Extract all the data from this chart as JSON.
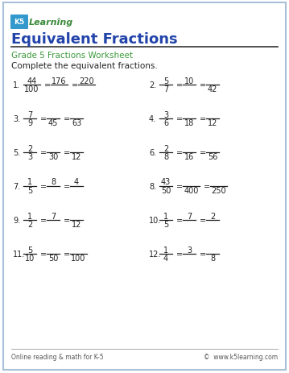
{
  "title": "Equivalent Fractions",
  "subtitle": "Grade 5 Fractions Worksheet",
  "instruction": "Complete the equivalent fractions.",
  "bg_color": "#ffffff",
  "border_color": "#a8c0d8",
  "title_color": "#2244aa",
  "subtitle_color": "#3a9a3a",
  "text_color": "#222222",
  "footer_left": "Online reading & math for K-5",
  "footer_right": "©  www.k5learning.com",
  "problems": [
    {
      "num": "1.",
      "fractions": [
        {
          "num": "44",
          "den": "100",
          "blank_num": false,
          "blank_den": false
        },
        {
          "num": "176",
          "den": "",
          "blank_num": false,
          "blank_den": true
        },
        {
          "num": "220",
          "den": "",
          "blank_num": false,
          "blank_den": true
        }
      ]
    },
    {
      "num": "2.",
      "fractions": [
        {
          "num": "5",
          "den": "7",
          "blank_num": false,
          "blank_den": false
        },
        {
          "num": "10",
          "den": "",
          "blank_num": false,
          "blank_den": true
        },
        {
          "num": "",
          "den": "42",
          "blank_num": true,
          "blank_den": false
        }
      ]
    },
    {
      "num": "3.",
      "fractions": [
        {
          "num": "7",
          "den": "9",
          "blank_num": false,
          "blank_den": false
        },
        {
          "num": "",
          "den": "45",
          "blank_num": true,
          "blank_den": false
        },
        {
          "num": "",
          "den": "63",
          "blank_num": true,
          "blank_den": false
        }
      ]
    },
    {
      "num": "4.",
      "fractions": [
        {
          "num": "3",
          "den": "6",
          "blank_num": false,
          "blank_den": false
        },
        {
          "num": "",
          "den": "18",
          "blank_num": true,
          "blank_den": false
        },
        {
          "num": "",
          "den": "12",
          "blank_num": true,
          "blank_den": false
        }
      ]
    },
    {
      "num": "5.",
      "fractions": [
        {
          "num": "2",
          "den": "3",
          "blank_num": false,
          "blank_den": false
        },
        {
          "num": "",
          "den": "30",
          "blank_num": true,
          "blank_den": false
        },
        {
          "num": "",
          "den": "12",
          "blank_num": true,
          "blank_den": false
        }
      ]
    },
    {
      "num": "6.",
      "fractions": [
        {
          "num": "2",
          "den": "8",
          "blank_num": false,
          "blank_den": false
        },
        {
          "num": "",
          "den": "16",
          "blank_num": true,
          "blank_den": false
        },
        {
          "num": "",
          "den": "56",
          "blank_num": true,
          "blank_den": false
        }
      ]
    },
    {
      "num": "7.",
      "fractions": [
        {
          "num": "1",
          "den": "5",
          "blank_num": false,
          "blank_den": false
        },
        {
          "num": "8",
          "den": "",
          "blank_num": false,
          "blank_den": true
        },
        {
          "num": "4",
          "den": "",
          "blank_num": false,
          "blank_den": true
        }
      ]
    },
    {
      "num": "8.",
      "fractions": [
        {
          "num": "43",
          "den": "50",
          "blank_num": false,
          "blank_den": false
        },
        {
          "num": "",
          "den": "400",
          "blank_num": true,
          "blank_den": false
        },
        {
          "num": "",
          "den": "250",
          "blank_num": true,
          "blank_den": false
        }
      ]
    },
    {
      "num": "9.",
      "fractions": [
        {
          "num": "1",
          "den": "2",
          "blank_num": false,
          "blank_den": false
        },
        {
          "num": "7",
          "den": "",
          "blank_num": false,
          "blank_den": true
        },
        {
          "num": "",
          "den": "12",
          "blank_num": true,
          "blank_den": false
        }
      ]
    },
    {
      "num": "10.",
      "fractions": [
        {
          "num": "1",
          "den": "5",
          "blank_num": false,
          "blank_den": false
        },
        {
          "num": "7",
          "den": "",
          "blank_num": false,
          "blank_den": true
        },
        {
          "num": "2",
          "den": "",
          "blank_num": false,
          "blank_den": true
        }
      ]
    },
    {
      "num": "11.",
      "fractions": [
        {
          "num": "5",
          "den": "10",
          "blank_num": false,
          "blank_den": false
        },
        {
          "num": "",
          "den": "50",
          "blank_num": true,
          "blank_den": false
        },
        {
          "num": "",
          "den": "100",
          "blank_num": true,
          "blank_den": false
        }
      ]
    },
    {
      "num": "12.",
      "fractions": [
        {
          "num": "1",
          "den": "4",
          "blank_num": false,
          "blank_den": false
        },
        {
          "num": "3",
          "den": "",
          "blank_num": false,
          "blank_den": true
        },
        {
          "num": "",
          "den": "8",
          "blank_num": true,
          "blank_den": false
        }
      ]
    }
  ]
}
